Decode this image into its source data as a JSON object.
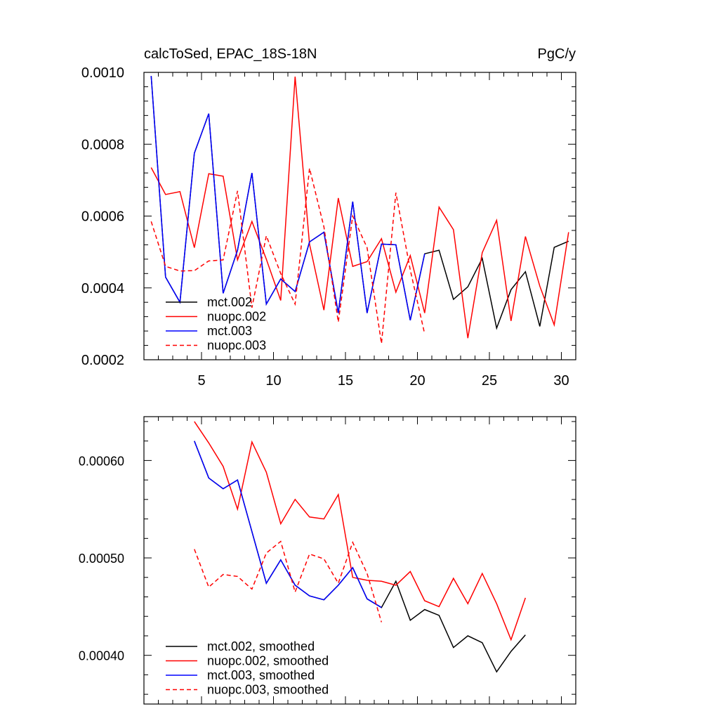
{
  "chart_data": [
    {
      "type": "line",
      "title": "calcToSed, EPAC_18S-18N",
      "units": "PgC/y",
      "xlabel": "",
      "ylabel": "",
      "xlim": [
        1,
        31
      ],
      "ylim": [
        0.0002,
        0.001
      ],
      "x_ticks": [
        5,
        10,
        15,
        20,
        25,
        30
      ],
      "x_tick_labels": [
        "5",
        "10",
        "15",
        "20",
        "25",
        "30"
      ],
      "y_ticks": [
        0.0002,
        0.0004,
        0.0006,
        0.0008,
        0.001
      ],
      "y_tick_labels": [
        "0.0002",
        "0.0004",
        "0.0006",
        "0.0008",
        "0.0010"
      ],
      "legend_position": "bottom-left",
      "series": [
        {
          "name": "mct.002",
          "color": "#000000",
          "dash": "solid",
          "x": [
            1.5,
            2.5,
            3.5,
            4.5,
            5.5,
            6.5,
            7.5,
            8.5,
            9.5,
            10.5,
            11.5,
            12.5,
            13.5,
            14.5,
            15.5,
            16.5,
            17.5,
            18.5,
            19.5,
            20.5,
            21.5,
            22.5,
            23.5,
            24.5,
            25.5,
            26.5,
            27.5,
            28.5,
            29.5,
            30.5
          ],
          "values": [
            0.00099,
            0.00043,
            0.00036,
            0.000775,
            0.000885,
            0.000385,
            0.000505,
            0.00072,
            0.000355,
            0.000425,
            0.00039,
            0.000528,
            0.000555,
            0.00033,
            0.00064,
            0.00033,
            0.000522,
            0.00052,
            0.00031,
            0.000495,
            0.000505,
            0.000368,
            0.000403,
            0.000482,
            0.000288,
            0.000395,
            0.000445,
            0.000293,
            0.000513,
            0.00053
          ]
        },
        {
          "name": "nuopc.002",
          "color": "#ff0000",
          "dash": "solid",
          "x": [
            1.5,
            2.5,
            3.5,
            4.5,
            5.5,
            6.5,
            7.5,
            8.5,
            9.5,
            10.5,
            11.5,
            12.5,
            13.5,
            14.5,
            15.5,
            16.5,
            17.5,
            18.5,
            19.5,
            20.5,
            21.5,
            22.5,
            23.5,
            24.5,
            25.5,
            26.5,
            27.5,
            28.5,
            29.5,
            30.5
          ],
          "values": [
            0.000735,
            0.00066,
            0.000668,
            0.000512,
            0.000718,
            0.000711,
            0.000478,
            0.000585,
            0.00048,
            0.000365,
            0.000988,
            0.000522,
            0.000338,
            0.00065,
            0.00046,
            0.000473,
            0.000537,
            0.000388,
            0.00049,
            0.00033,
            0.000625,
            0.000562,
            0.00026,
            0.000498,
            0.000588,
            0.000308,
            0.000543,
            0.000405,
            0.000297,
            0.000555
          ]
        },
        {
          "name": "mct.003",
          "color": "#0000ff",
          "dash": "solid",
          "x": [
            1.5,
            2.5,
            3.5,
            4.5,
            5.5,
            6.5,
            7.5,
            8.5,
            9.5,
            10.5,
            11.5,
            12.5,
            13.5,
            14.5,
            15.5,
            16.5,
            17.5,
            18.5,
            19.5,
            20.5
          ],
          "values": [
            0.00099,
            0.00043,
            0.00036,
            0.000775,
            0.000885,
            0.000385,
            0.000505,
            0.00072,
            0.000355,
            0.000425,
            0.00039,
            0.000528,
            0.000555,
            0.00033,
            0.00064,
            0.00033,
            0.000522,
            0.00052,
            0.00031,
            0.000495
          ]
        },
        {
          "name": "nuopc.003",
          "color": "#ff0000",
          "dash": "dashed",
          "x": [
            1.5,
            2.5,
            3.5,
            4.5,
            5.5,
            6.5,
            7.5,
            8.5,
            9.5,
            10.5,
            11.5,
            12.5,
            13.5,
            14.5,
            15.5,
            16.5,
            17.5,
            18.5,
            19.5,
            20.5
          ],
          "values": [
            0.000585,
            0.00046,
            0.000447,
            0.000448,
            0.000475,
            0.000478,
            0.00067,
            0.000345,
            0.000545,
            0.00044,
            0.000355,
            0.000733,
            0.00057,
            0.000305,
            0.0006,
            0.000512,
            0.000245,
            0.000665,
            0.00045,
            0.000272
          ]
        }
      ]
    },
    {
      "type": "line",
      "title": "",
      "xlabel": "",
      "ylabel": "",
      "xlim": [
        1,
        31
      ],
      "ylim": [
        0.00035,
        0.000645
      ],
      "x_ticks": [
        5,
        10,
        15,
        20,
        25,
        30
      ],
      "x_tick_labels": [],
      "y_ticks": [
        0.0004,
        0.0005,
        0.0006
      ],
      "y_tick_labels": [
        "0.00040",
        "0.00050",
        "0.00060"
      ],
      "legend_position": "bottom-left",
      "series": [
        {
          "name": "mct.002, smoothed",
          "color": "#000000",
          "dash": "solid",
          "x": [
            4.5,
            5.5,
            6.5,
            7.5,
            8.5,
            9.5,
            10.5,
            11.5,
            12.5,
            13.5,
            14.5,
            15.5,
            16.5,
            17.5,
            18.5,
            19.5,
            20.5,
            21.5,
            22.5,
            23.5,
            24.5,
            25.5,
            26.5,
            27.5
          ],
          "values": [
            0.00062,
            0.000582,
            0.000571,
            0.00058,
            0.000527,
            0.000474,
            0.000498,
            0.000472,
            0.000461,
            0.000457,
            0.000472,
            0.00049,
            0.000458,
            0.000449,
            0.000476,
            0.000436,
            0.000447,
            0.000441,
            0.000408,
            0.00042,
            0.000413,
            0.000383,
            0.000404,
            0.000421
          ]
        },
        {
          "name": "nuopc.002, smoothed",
          "color": "#ff0000",
          "dash": "solid",
          "x": [
            4.5,
            5.5,
            6.5,
            7.5,
            8.5,
            9.5,
            10.5,
            11.5,
            12.5,
            13.5,
            14.5,
            15.5,
            16.5,
            17.5,
            18.5,
            19.5,
            20.5,
            21.5,
            22.5,
            23.5,
            24.5,
            25.5,
            26.5,
            27.5
          ],
          "values": [
            0.00064,
            0.000618,
            0.000594,
            0.00055,
            0.000619,
            0.000588,
            0.000535,
            0.00056,
            0.000542,
            0.00054,
            0.000565,
            0.00048,
            0.000477,
            0.000476,
            0.000472,
            0.000486,
            0.000456,
            0.00045,
            0.000479,
            0.000453,
            0.000484,
            0.000453,
            0.000416,
            0.000459
          ]
        },
        {
          "name": "mct.003, smoothed",
          "color": "#0000ff",
          "dash": "solid",
          "x": [
            4.5,
            5.5,
            6.5,
            7.5,
            8.5,
            9.5,
            10.5,
            11.5,
            12.5,
            13.5,
            14.5,
            15.5,
            16.5,
            17.5
          ],
          "values": [
            0.00062,
            0.000582,
            0.000571,
            0.00058,
            0.000527,
            0.000474,
            0.000498,
            0.000472,
            0.000461,
            0.000457,
            0.000472,
            0.00049,
            0.000458,
            0.000449
          ]
        },
        {
          "name": "nuopc.003, smoothed",
          "color": "#ff0000",
          "dash": "dashed",
          "x": [
            4.5,
            5.5,
            6.5,
            7.5,
            8.5,
            9.5,
            10.5,
            11.5,
            12.5,
            13.5,
            14.5,
            15.5,
            16.5,
            17.5
          ],
          "values": [
            0.000509,
            0.00047,
            0.000483,
            0.000481,
            0.000468,
            0.000505,
            0.000517,
            0.000465,
            0.000504,
            0.000499,
            0.000474,
            0.000516,
            0.000484,
            0.000434
          ]
        }
      ]
    }
  ]
}
